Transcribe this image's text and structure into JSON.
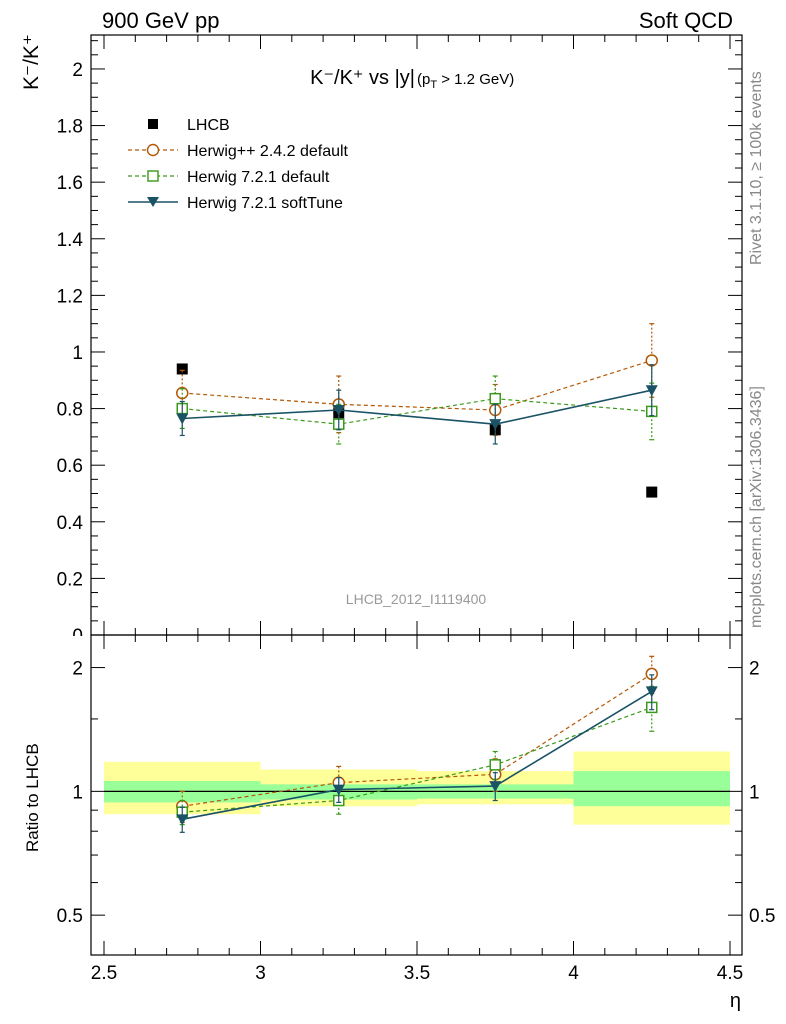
{
  "header": {
    "left": "900 GeV pp",
    "right": "Soft QCD"
  },
  "side_labels": {
    "rivet": "Rivet 3.1.10, ≥ 100k events",
    "mcplots": "mcplots.cern.ch [arXiv:1306.3436]"
  },
  "analysis_id": "LHCB_2012_I1119400",
  "colors": {
    "lhcb": "#000000",
    "herwigpp": "#b35806",
    "h721": "#3a9a1a",
    "soft": "#1a5266",
    "band_inner": "#99ff99",
    "band_outer": "#ffff99"
  },
  "chart_data": [
    {
      "type": "scatter",
      "title": "K⁻/K⁺ vs |y|(p_T > 1.2 GeV)",
      "title_main": "K⁻/K⁺ vs |y|",
      "title_sub": "(p",
      "title_sub_T": "T",
      "title_sub_rest": " > 1.2 GeV)",
      "xlabel": "η",
      "ylabel": "K⁻/K⁺",
      "xlim": [
        2.5,
        4.5
      ],
      "ylim": [
        0,
        2.12
      ],
      "yticks": [
        {
          "v": 0.2,
          "label": "0.2"
        },
        {
          "v": 0.4,
          "label": "0.4"
        },
        {
          "v": 0.6,
          "label": "0.6"
        },
        {
          "v": 0.8,
          "label": "0.8"
        },
        {
          "v": 1.0,
          "label": "1"
        },
        {
          "v": 1.2,
          "label": "1.2"
        },
        {
          "v": 1.4,
          "label": "1.4"
        },
        {
          "v": 1.6,
          "label": "1.6"
        },
        {
          "v": 1.8,
          "label": "1.8"
        },
        {
          "v": 2.0,
          "label": "2"
        }
      ],
      "x": [
        2.75,
        3.25,
        3.75,
        4.25
      ],
      "series": [
        {
          "name": "LHCB",
          "key": "lhcb",
          "marker": "square-filled",
          "line": "none",
          "values": [
            0.94,
            0.785,
            0.725,
            0.505
          ],
          "errors": [
            0.0,
            0.0,
            0.0,
            0.0
          ]
        },
        {
          "name": "Herwig++ 2.4.2 default",
          "key": "herwigpp",
          "marker": "circle-open",
          "line": "dashed",
          "values": [
            0.855,
            0.815,
            0.795,
            0.97
          ],
          "errors": [
            0.08,
            0.1,
            0.09,
            0.13
          ]
        },
        {
          "name": "Herwig 7.2.1 default",
          "key": "h721",
          "marker": "square-open",
          "line": "dashed",
          "values": [
            0.8,
            0.745,
            0.835,
            0.79
          ],
          "errors": [
            0.07,
            0.07,
            0.08,
            0.1
          ]
        },
        {
          "name": "Herwig 7.2.1 softTune",
          "key": "soft",
          "marker": "triangle-down",
          "line": "solid",
          "values": [
            0.765,
            0.795,
            0.745,
            0.865
          ],
          "errors": [
            0.06,
            0.07,
            0.07,
            0.09
          ]
        }
      ]
    },
    {
      "type": "scatter",
      "title": "",
      "ylabel": "Ratio to LHCB",
      "xlabel": "η",
      "xlim": [
        2.5,
        4.5
      ],
      "ylim": [
        0.4,
        2.4
      ],
      "yscale": "log",
      "yticks": [
        {
          "v": 0.5,
          "label": "0.5"
        },
        {
          "v": 1,
          "label": "1"
        },
        {
          "v": 2,
          "label": "2"
        }
      ],
      "xticks": [
        {
          "v": 2.5,
          "label": "2.5"
        },
        {
          "v": 3,
          "label": "3"
        },
        {
          "v": 3.5,
          "label": "3.5"
        },
        {
          "v": 4,
          "label": "4"
        },
        {
          "v": 4.5,
          "label": "4.5"
        }
      ],
      "bands": [
        {
          "x0": 2.5,
          "x1": 3.0,
          "inner": [
            0.94,
            1.06
          ],
          "outer": [
            0.88,
            1.18
          ]
        },
        {
          "x0": 3.0,
          "x1": 3.5,
          "inner": [
            0.955,
            1.04
          ],
          "outer": [
            0.92,
            1.13
          ]
        },
        {
          "x0": 3.5,
          "x1": 4.0,
          "inner": [
            0.96,
            1.04
          ],
          "outer": [
            0.93,
            1.12
          ]
        },
        {
          "x0": 4.0,
          "x1": 4.5,
          "inner": [
            0.92,
            1.12
          ],
          "outer": [
            0.83,
            1.25
          ]
        }
      ],
      "x": [
        2.75,
        3.25,
        3.75,
        4.25
      ],
      "series": [
        {
          "name": "Herwig++ 2.4.2 default",
          "key": "herwigpp",
          "marker": "circle-open",
          "line": "dashed",
          "values": [
            0.92,
            1.05,
            1.1,
            1.93
          ],
          "errors": [
            0.08,
            0.1,
            0.1,
            0.2
          ]
        },
        {
          "name": "Herwig 7.2.1 default",
          "key": "h721",
          "marker": "square-open",
          "line": "dashed",
          "values": [
            0.89,
            0.95,
            1.16,
            1.6
          ],
          "errors": [
            0.06,
            0.07,
            0.09,
            0.2
          ]
        },
        {
          "name": "Herwig 7.2.1 softTune",
          "key": "soft",
          "marker": "triangle-down",
          "line": "solid",
          "values": [
            0.855,
            1.01,
            1.03,
            1.75
          ],
          "errors": [
            0.06,
            0.07,
            0.08,
            0.17
          ]
        }
      ]
    }
  ]
}
